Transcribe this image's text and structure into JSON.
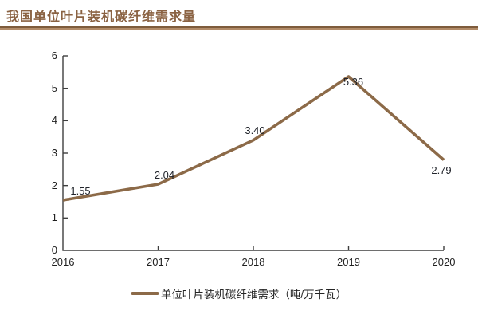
{
  "title": "我国单位叶片装机碳纤维需求量",
  "colors": {
    "accent_brown": "#8c6a48",
    "title_brown": "#8a6242",
    "label_text": "#21242b",
    "axis": "#3f3f3f"
  },
  "chart_data": {
    "type": "line",
    "title": "我国单位叶片装机碳纤维需求量",
    "categories": [
      "2016",
      "2017",
      "2018",
      "2019",
      "2020"
    ],
    "series": [
      {
        "name": "单位叶片装机碳纤维需求（吨/万千瓦）",
        "values": [
          1.55,
          2.04,
          3.4,
          5.36,
          2.79
        ],
        "color": "#8c6a48"
      }
    ],
    "value_labels": [
      "1.55",
      "2.04",
      "3.40",
      "5.36",
      "2.79"
    ],
    "y_ticks": [
      "0",
      "1",
      "2",
      "3",
      "4",
      "5",
      "6"
    ],
    "ylim": [
      0,
      6
    ],
    "xlabel": "",
    "ylabel": "",
    "grid": false,
    "legend_position": "bottom"
  },
  "legend": {
    "label": "单位叶片装机碳纤维需求（吨/万千瓦）"
  }
}
